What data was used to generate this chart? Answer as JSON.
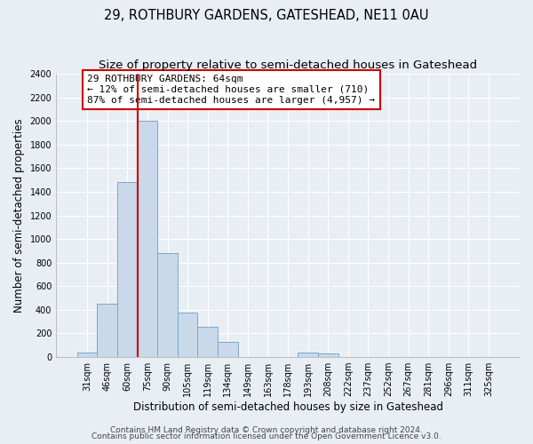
{
  "title": "29, ROTHBURY GARDENS, GATESHEAD, NE11 0AU",
  "subtitle": "Size of property relative to semi-detached houses in Gateshead",
  "xlabel": "Distribution of semi-detached houses by size in Gateshead",
  "ylabel": "Number of semi-detached properties",
  "bar_labels": [
    "31sqm",
    "46sqm",
    "60sqm",
    "75sqm",
    "90sqm",
    "105sqm",
    "119sqm",
    "134sqm",
    "149sqm",
    "163sqm",
    "178sqm",
    "193sqm",
    "208sqm",
    "222sqm",
    "237sqm",
    "252sqm",
    "267sqm",
    "281sqm",
    "296sqm",
    "311sqm",
    "325sqm"
  ],
  "bar_values": [
    40,
    450,
    1480,
    2000,
    880,
    375,
    255,
    125,
    0,
    0,
    0,
    40,
    30,
    0,
    0,
    0,
    0,
    0,
    0,
    0,
    0
  ],
  "bar_color": "#c9d9ea",
  "bar_edge_color": "#7aa8cc",
  "vline_x_index": 2,
  "vline_color": "#cc0000",
  "annotation_text": "29 ROTHBURY GARDENS: 64sqm\n← 12% of semi-detached houses are smaller (710)\n87% of semi-detached houses are larger (4,957) →",
  "annotation_box_color": "#ffffff",
  "annotation_box_edge": "#cc0000",
  "ylim": [
    0,
    2400
  ],
  "yticks": [
    0,
    200,
    400,
    600,
    800,
    1000,
    1200,
    1400,
    1600,
    1800,
    2000,
    2200,
    2400
  ],
  "footer_line1": "Contains HM Land Registry data © Crown copyright and database right 2024.",
  "footer_line2": "Contains public sector information licensed under the Open Government Licence v3.0.",
  "bg_color": "#e8eef4",
  "plot_bg_color": "#e8eef4",
  "grid_color": "#ffffff",
  "title_fontsize": 10.5,
  "subtitle_fontsize": 9.5,
  "axis_label_fontsize": 8.5,
  "tick_fontsize": 7,
  "annotation_fontsize": 8,
  "footer_fontsize": 6.5
}
